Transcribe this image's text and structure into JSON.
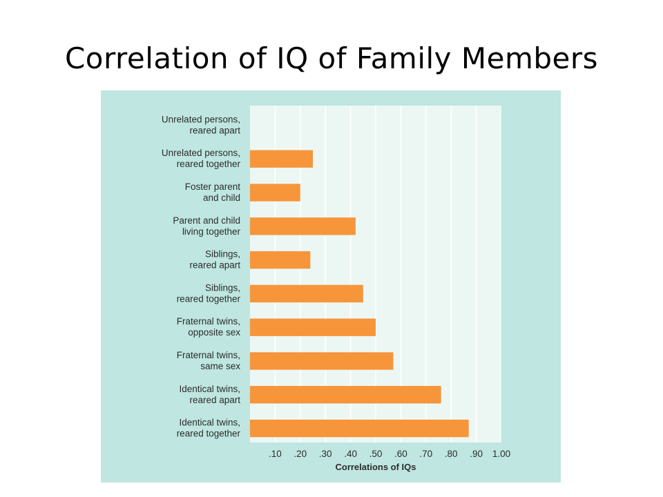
{
  "slide": {
    "title": "Correlation of IQ of Family Members"
  },
  "colors": {
    "panel": "#bfe6e0",
    "plot_area": "#ecf7f4",
    "bar": "#f7953b",
    "grid": "#ffffff",
    "text": "#2c2c2c"
  },
  "chart_data": {
    "type": "bar",
    "orientation": "horizontal",
    "title": "",
    "xlabel": "Correlations of IQs",
    "ylabel": "",
    "xlim": [
      0,
      1.0
    ],
    "xticks": [
      0.1,
      0.2,
      0.3,
      0.4,
      0.5,
      0.6,
      0.7,
      0.8,
      0.9,
      1.0
    ],
    "xtick_labels": [
      ".10",
      ".20",
      ".30",
      ".40",
      ".50",
      ".60",
      ".70",
      ".80",
      ".90",
      "1.00"
    ],
    "grid": true,
    "categories": [
      [
        "Unrelated persons,",
        "reared apart"
      ],
      [
        "Unrelated persons,",
        "reared together"
      ],
      [
        "Foster parent",
        "and child"
      ],
      [
        "Parent and child",
        "living together"
      ],
      [
        "Siblings,",
        "reared apart"
      ],
      [
        "Siblings,",
        "reared together"
      ],
      [
        "Fraternal twins,",
        "opposite sex"
      ],
      [
        "Fraternal twins,",
        "same sex"
      ],
      [
        "Identical twins,",
        "reared apart"
      ],
      [
        "Identical twins,",
        "reared together"
      ]
    ],
    "values": [
      0.0,
      0.25,
      0.2,
      0.42,
      0.24,
      0.45,
      0.5,
      0.57,
      0.76,
      0.87
    ]
  }
}
